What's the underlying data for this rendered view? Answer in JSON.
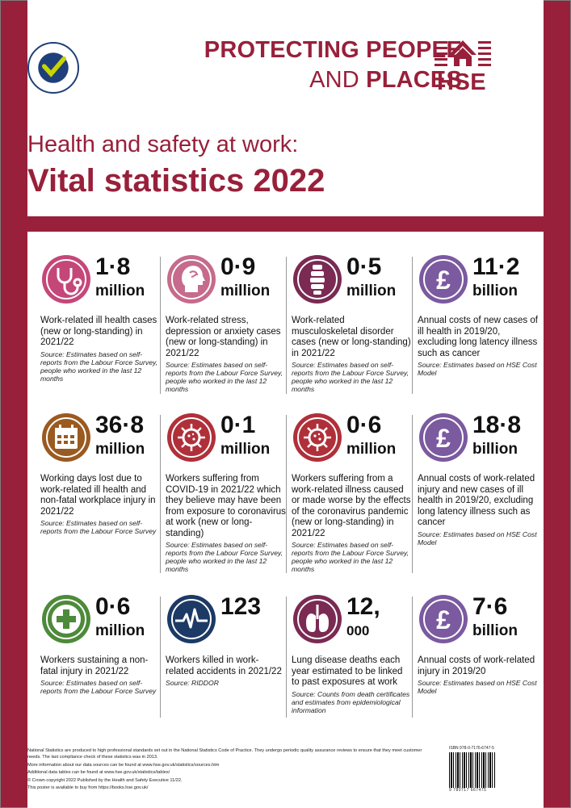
{
  "header": {
    "tagline_line1": "PROTECTING PEOPLE",
    "tagline_line2_a": "AND ",
    "tagline_line2_b": "PLACES",
    "hse_logo_text": "HSE",
    "ns_logo_text": "NATIONAL STATISTICS",
    "title_line1": "Health and safety at work:",
    "title_line2": "Vital statistics 2022"
  },
  "colors": {
    "brand": "#98203a",
    "pink": "#c5477a",
    "rose": "#c66b8b",
    "plum": "#7a2a53",
    "purple": "#7b5aa0",
    "brown": "#9a5a20",
    "red": "#b0303a",
    "green": "#4d8a3a",
    "navy": "#1d3a66"
  },
  "stats": [
    {
      "icon": "stethoscope-icon",
      "value": "1·8",
      "unit": "million",
      "desc": "Work-related ill health cases (new or long-standing) in 2021/22",
      "source": "Source: Estimates based on self-reports from the Labour Force Survey, people who worked in the last 12 months"
    },
    {
      "icon": "head-profile-icon",
      "value": "0·9",
      "unit": "million",
      "desc": "Work-related stress, depression or anxiety cases (new or long-standing) in 2021/22",
      "source": "Source: Estimates based on self-reports from the Labour Force Survey, people who worked in the last 12 months"
    },
    {
      "icon": "spine-icon",
      "value": "0·5",
      "unit": "million",
      "desc": "Work-related musculoskeletal disorder cases (new or long-standing) in 2021/22",
      "source": "Source: Estimates based on self-reports from the Labour Force Survey, people who worked in the last 12 months"
    },
    {
      "icon": "pound-icon",
      "value": "11·2",
      "unit": "billion",
      "desc": "Annual costs of new cases of ill health in 2019/20, excluding long latency illness such as cancer",
      "source": "Source: Estimates based on HSE Cost Model"
    },
    {
      "icon": "calendar-icon",
      "value": "36·8",
      "unit": "million",
      "desc": "Working days lost due to work-related ill health and non-fatal workplace injury in 2021/22",
      "source": "Source: Estimates based on self-reports from the Labour Force Survey"
    },
    {
      "icon": "virus-icon",
      "value": "0·1",
      "unit": "million",
      "desc": "Workers suffering from COVID-19 in 2021/22 which they believe may have been from exposure to coronavirus at work (new or long-standing)",
      "source": "Source: Estimates based on self-reports from the Labour Force Survey, people who worked in the last 12 months"
    },
    {
      "icon": "virus-icon",
      "value": "0·6",
      "unit": "million",
      "desc": "Workers suffering from a work-related illness caused or made worse by the effects of the coronavirus pandemic (new or long-standing) in 2021/22",
      "source": "Source: Estimates based on self-reports from the Labour Force Survey, people who worked in the last 12 months"
    },
    {
      "icon": "pound-icon",
      "value": "18·8",
      "unit": "billion",
      "desc": "Annual costs of work-related injury and new cases of ill health in 2019/20, excluding long latency illness such as cancer",
      "source": "Source: Estimates based on HSE Cost Model"
    },
    {
      "icon": "first-aid-cross-icon",
      "value": "0·6",
      "unit": "million",
      "desc": "Workers sustaining a non-fatal injury in 2021/22",
      "source": "Source: Estimates based on self-reports from the Labour Force Survey"
    },
    {
      "icon": "heartbeat-icon",
      "value": "123",
      "unit": "",
      "desc": "Workers killed in work-related accidents in 2021/22",
      "source": "Source: RIDDOR"
    },
    {
      "icon": "lungs-icon",
      "value": "12,",
      "unit": "000",
      "desc": "Lung disease deaths each year estimated to be linked to past exposures at work",
      "source": "Source: Counts from death certificates and estimates from epidemiological information"
    },
    {
      "icon": "pound-icon",
      "value": "7·6",
      "unit": "billion",
      "desc": "Annual costs of work-related injury in 2019/20",
      "source": "Source: Estimates based on HSE Cost Model"
    }
  ],
  "footer": {
    "line1": "National Statistics are produced to high professional standards set out in the National Statistics Code of Practice. They undergo periodic quality assurance reviews to ensure that they meet customer needs. The last compliance check of these statistics was in 2013.",
    "line2": "More information about our data sources can be found at www.hse.gov.uk/statistics/sources.htm",
    "line3": "Additional data tables can be found at www.hse.gov.uk/statistics/tables/",
    "line4": "© Crown copyright 2022   Published by the Health and Safety Executive 11/22.",
    "line5": "This poster is available to buy from https://books.hse.gov.uk/",
    "isbn": "ISBN 978-0-7176-6747-5",
    "barcode_number": "9 780717 667475"
  }
}
